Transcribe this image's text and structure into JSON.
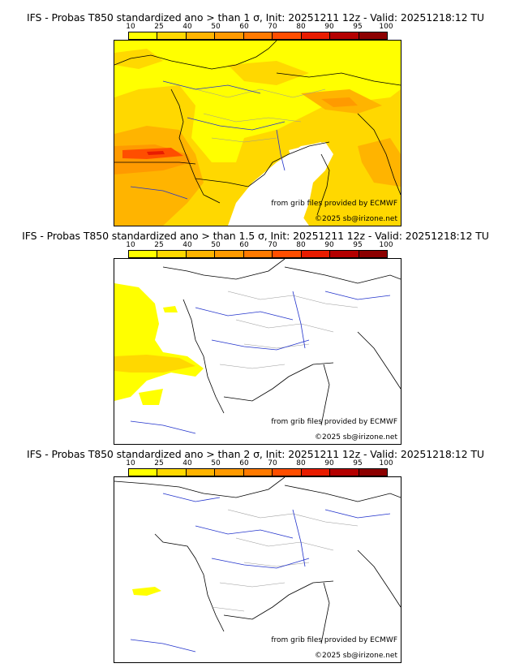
{
  "colorbar": {
    "ticks": [
      "10",
      "25",
      "40",
      "50",
      "60",
      "70",
      "80",
      "90",
      "95",
      "100"
    ],
    "colors": [
      "#ffff00",
      "#ffd800",
      "#ffb400",
      "#ff9a00",
      "#ff7a00",
      "#ff4e00",
      "#e81c00",
      "#b40000",
      "#8c0000"
    ]
  },
  "panels": [
    {
      "title": "IFS - Probas T850  standardized ano > than 1 σ, Init: 20251211 12z - Valid: 20251218:12 TU",
      "source_credit": "from grib files provided by ECMWF",
      "copyright": "©2025 sb@irizone.net"
    },
    {
      "title": "IFS - Probas T850  standardized ano > than 1.5 σ, Init: 20251211 12z - Valid: 20251218:12 TU",
      "source_credit": "from grib files provided by ECMWF",
      "copyright": "©2025 sb@irizone.net"
    },
    {
      "title": "IFS - Probas T850  standardized ano > than 2 σ, Init: 20251211 12z - Valid: 20251218:12 TU",
      "source_credit": "from grib files provided by ECMWF",
      "copyright": "©2025 sb@irizone.net"
    }
  ]
}
